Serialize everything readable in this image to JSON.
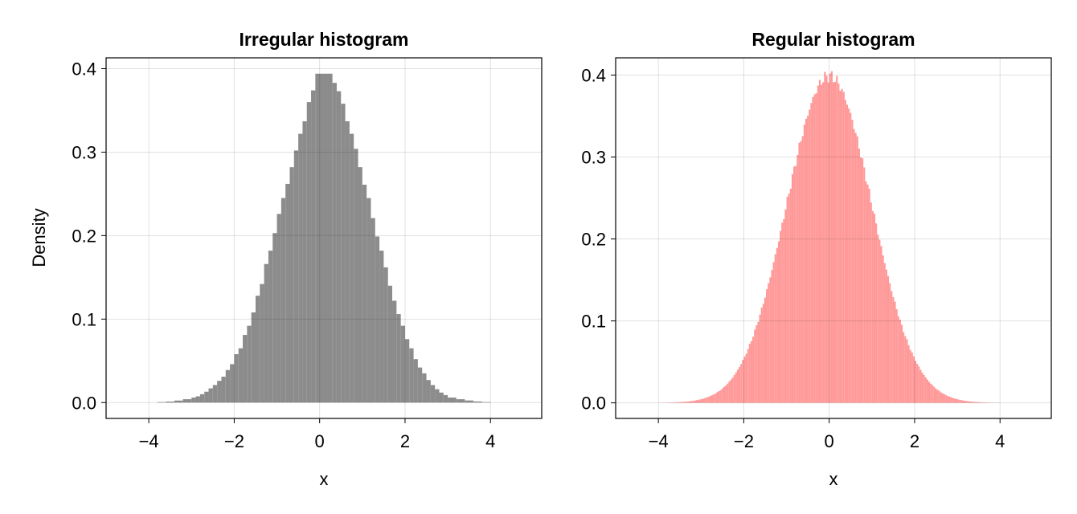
{
  "chart_data": [
    {
      "type": "bar",
      "title": "Irregular histogram",
      "xlabel": "x",
      "ylabel": "Density",
      "xlim": [
        -5.0,
        5.2
      ],
      "ylim": [
        -0.019,
        0.413
      ],
      "xticks": [
        -4,
        -2,
        0,
        2,
        4
      ],
      "xtick_labels": [
        "−4",
        "−2",
        "0",
        "2",
        "4"
      ],
      "yticks": [
        0.0,
        0.1,
        0.2,
        0.3,
        0.4
      ],
      "ytick_labels": [
        "0.0",
        "0.1",
        "0.2",
        "0.3",
        "0.4"
      ],
      "grid": true,
      "color": "#8c8c8c",
      "bins": [
        [
          -3.8,
          -3.6,
          0.0006
        ],
        [
          -3.6,
          -3.4,
          0.0012
        ],
        [
          -3.4,
          -3.2,
          0.0024
        ],
        [
          -3.2,
          -3.0,
          0.004
        ],
        [
          -3.0,
          -2.9,
          0.006
        ],
        [
          -2.9,
          -2.8,
          0.0075
        ],
        [
          -2.8,
          -2.7,
          0.01
        ],
        [
          -2.7,
          -2.6,
          0.013
        ],
        [
          -2.6,
          -2.5,
          0.017
        ],
        [
          -2.5,
          -2.4,
          0.021
        ],
        [
          -2.4,
          -2.3,
          0.026
        ],
        [
          -2.3,
          -2.2,
          0.031
        ],
        [
          -2.2,
          -2.1,
          0.039
        ],
        [
          -2.1,
          -2.0,
          0.046
        ],
        [
          -2.0,
          -1.9,
          0.058
        ],
        [
          -1.9,
          -1.8,
          0.065
        ],
        [
          -1.8,
          -1.7,
          0.081
        ],
        [
          -1.7,
          -1.6,
          0.092
        ],
        [
          -1.6,
          -1.5,
          0.108
        ],
        [
          -1.5,
          -1.4,
          0.128
        ],
        [
          -1.4,
          -1.3,
          0.142
        ],
        [
          -1.3,
          -1.2,
          0.166
        ],
        [
          -1.2,
          -1.1,
          0.182
        ],
        [
          -1.1,
          -1.0,
          0.203
        ],
        [
          -1.0,
          -0.9,
          0.226
        ],
        [
          -0.9,
          -0.8,
          0.245
        ],
        [
          -0.8,
          -0.7,
          0.262
        ],
        [
          -0.7,
          -0.6,
          0.282
        ],
        [
          -0.6,
          -0.5,
          0.302
        ],
        [
          -0.5,
          -0.4,
          0.322
        ],
        [
          -0.4,
          -0.3,
          0.337
        ],
        [
          -0.3,
          -0.2,
          0.36
        ],
        [
          -0.2,
          -0.1,
          0.374
        ],
        [
          -0.1,
          0.3,
          0.394
        ],
        [
          0.3,
          0.4,
          0.383
        ],
        [
          0.4,
          0.5,
          0.373
        ],
        [
          0.5,
          0.6,
          0.358
        ],
        [
          0.6,
          0.7,
          0.337
        ],
        [
          0.7,
          0.8,
          0.322
        ],
        [
          0.8,
          0.9,
          0.304
        ],
        [
          0.9,
          1.0,
          0.282
        ],
        [
          1.0,
          1.1,
          0.261
        ],
        [
          1.1,
          1.2,
          0.245
        ],
        [
          1.2,
          1.3,
          0.221
        ],
        [
          1.3,
          1.4,
          0.199
        ],
        [
          1.4,
          1.5,
          0.182
        ],
        [
          1.5,
          1.6,
          0.162
        ],
        [
          1.6,
          1.7,
          0.14
        ],
        [
          1.7,
          1.8,
          0.122
        ],
        [
          1.8,
          1.9,
          0.106
        ],
        [
          1.9,
          2.0,
          0.092
        ],
        [
          2.0,
          2.1,
          0.076
        ],
        [
          2.1,
          2.2,
          0.065
        ],
        [
          2.2,
          2.3,
          0.052
        ],
        [
          2.3,
          2.4,
          0.042
        ],
        [
          2.4,
          2.5,
          0.035
        ],
        [
          2.5,
          2.6,
          0.027
        ],
        [
          2.6,
          2.7,
          0.021
        ],
        [
          2.7,
          2.8,
          0.016
        ],
        [
          2.8,
          2.9,
          0.012
        ],
        [
          2.9,
          3.0,
          0.009
        ],
        [
          3.0,
          3.2,
          0.006
        ],
        [
          3.2,
          3.4,
          0.004
        ],
        [
          3.4,
          3.6,
          0.0025
        ],
        [
          3.6,
          3.8,
          0.0013
        ],
        [
          3.8,
          4.0,
          0.0006
        ]
      ]
    },
    {
      "type": "bar",
      "title": "Regular histogram",
      "xlabel": "x",
      "ylabel": "",
      "xlim": [
        -5.0,
        5.2
      ],
      "ylim": [
        -0.019,
        0.421
      ],
      "xticks": [
        -4,
        -2,
        0,
        2,
        4
      ],
      "xtick_labels": [
        "−4",
        "−2",
        "0",
        "2",
        "4"
      ],
      "yticks": [
        0.0,
        0.1,
        0.2,
        0.3,
        0.4
      ],
      "ytick_labels": [
        "0.0",
        "0.1",
        "0.2",
        "0.3",
        "0.4"
      ],
      "grid": true,
      "color": "#ff9999",
      "bin_range": [
        -4.0,
        4.0
      ],
      "bin_width": 0.04,
      "density_curve": {
        "mean": 0,
        "sd": 1
      }
    }
  ]
}
